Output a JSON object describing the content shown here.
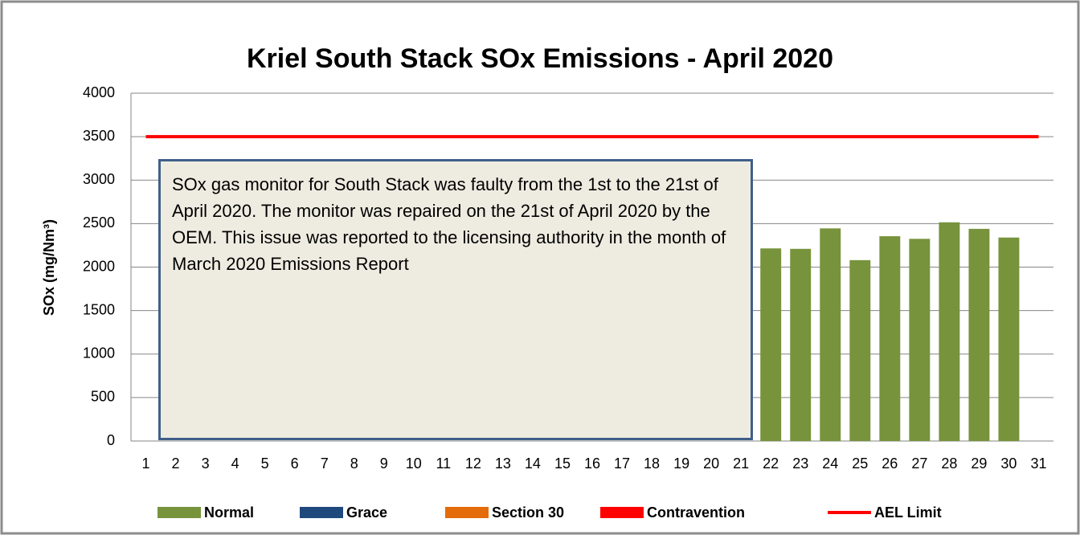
{
  "chart_data": {
    "type": "bar",
    "title": "Kriel South Stack SOx Emissions -  April 2020",
    "y_label": "SOx (mg/Nm³)",
    "annotation": "SOx gas monitor for South Stack was faulty from the 1st to the 21st of April 2020. The monitor was repaired on the 21st of April 2020 by the OEM. This issue was reported to the licensing authority in the month of March 2020 Emissions Report",
    "categories": [
      "1",
      "2",
      "3",
      "4",
      "5",
      "6",
      "7",
      "8",
      "9",
      "10",
      "11",
      "12",
      "13",
      "14",
      "15",
      "16",
      "17",
      "18",
      "19",
      "20",
      "21",
      "22",
      "23",
      "24",
      "25",
      "26",
      "27",
      "28",
      "29",
      "30",
      "31"
    ],
    "series": [
      {
        "name": "Normal",
        "color": "#77933c",
        "type": "bar",
        "values": [
          null,
          null,
          null,
          null,
          null,
          null,
          null,
          null,
          null,
          null,
          null,
          null,
          null,
          null,
          null,
          null,
          null,
          null,
          null,
          null,
          null,
          2215,
          2210,
          2445,
          2080,
          2355,
          2325,
          2515,
          2440,
          2340,
          null
        ]
      },
      {
        "name": "Grace",
        "color": "#1f497d",
        "type": "bar",
        "values": [
          null,
          null,
          null,
          null,
          null,
          null,
          null,
          null,
          null,
          null,
          null,
          null,
          null,
          null,
          null,
          null,
          null,
          null,
          null,
          null,
          null,
          null,
          null,
          null,
          null,
          null,
          null,
          null,
          null,
          null,
          null
        ]
      },
      {
        "name": "Section 30",
        "color": "#e46c0a",
        "type": "bar",
        "values": [
          null,
          null,
          null,
          null,
          null,
          null,
          null,
          null,
          null,
          null,
          null,
          null,
          null,
          null,
          null,
          null,
          null,
          null,
          null,
          null,
          null,
          null,
          null,
          null,
          null,
          null,
          null,
          null,
          null,
          null,
          null
        ]
      },
      {
        "name": "Contravention",
        "color": "#ff0000",
        "type": "bar",
        "values": [
          null,
          null,
          null,
          null,
          null,
          null,
          null,
          null,
          null,
          null,
          null,
          null,
          null,
          null,
          null,
          null,
          null,
          null,
          null,
          null,
          null,
          null,
          null,
          null,
          null,
          null,
          null,
          null,
          null,
          null,
          null
        ]
      },
      {
        "name": "AEL Limit",
        "color": "#ff0000",
        "type": "line",
        "values": [
          3500,
          3500,
          3500,
          3500,
          3500,
          3500,
          3500,
          3500,
          3500,
          3500,
          3500,
          3500,
          3500,
          3500,
          3500,
          3500,
          3500,
          3500,
          3500,
          3500,
          3500,
          3500,
          3500,
          3500,
          3500,
          3500,
          3500,
          3500,
          3500,
          3500,
          3500
        ]
      }
    ],
    "ylim": [
      0,
      4000
    ],
    "yticks": [
      0,
      500,
      1000,
      1500,
      2000,
      2500,
      3000,
      3500,
      4000
    ],
    "grid": true,
    "legend": "bottom"
  }
}
